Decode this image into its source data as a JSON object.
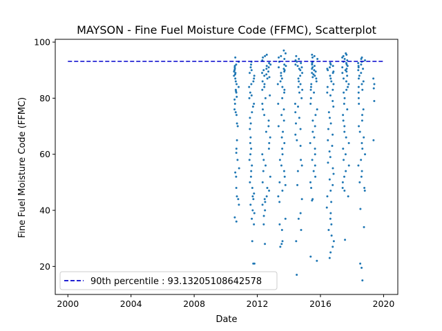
{
  "chart_data": {
    "type": "scatter",
    "title": "MAYSON - Fine Fuel Moisture Code (FFMC), Scatterplot",
    "xlabel": "Date",
    "ylabel": "Fine Fuel Moisture Code (FFMC)",
    "xlim": [
      1999.2,
      2020.9
    ],
    "ylim": [
      10,
      101
    ],
    "xticks": [
      2000,
      2004,
      2008,
      2012,
      2016,
      2020
    ],
    "yticks": [
      20,
      40,
      60,
      80,
      100
    ],
    "point_color": "#1f77b4",
    "reference_line": {
      "label": "90th percentile : 93.13205108642578",
      "value": 93.13205108642578,
      "color": "#0000cc",
      "style": "dashed"
    },
    "legend_position": "lower-left",
    "seasons": [
      {
        "year": 2010,
        "x_start": 2010.52,
        "x_end": 2010.85,
        "max": 94.5,
        "min": 36.0,
        "values": [
          94.5,
          93.0,
          92.0,
          91.5,
          91.0,
          90.5,
          90.0,
          89.5,
          89.0,
          88.5,
          88.0,
          87.0,
          86.0,
          85.0,
          84.0,
          83.0,
          82.5,
          82.0,
          80.5,
          79.5,
          78.0,
          76.0,
          75.0,
          74.0,
          71.0,
          70.0,
          65.0,
          62.0,
          60.5,
          58.0,
          55.0,
          53.5,
          52.0,
          48.0,
          45.0,
          44.0,
          42.0,
          37.5,
          36.0
        ]
      },
      {
        "year": 2011,
        "x_start": 2011.48,
        "x_end": 2011.82,
        "max": 93.0,
        "min": 21.0,
        "values": [
          93.0,
          92.0,
          91.0,
          90.0,
          89.0,
          88.0,
          87.0,
          86.0,
          85.0,
          84.0,
          82.0,
          81.0,
          80.0,
          78.0,
          77.0,
          75.0,
          73.0,
          71.0,
          69.0,
          66.0,
          64.0,
          62.0,
          60.0,
          58.0,
          56.0,
          54.0,
          52.0,
          50.0,
          48.0,
          46.0,
          45.0,
          44.0,
          42.0,
          40.0,
          39.0,
          37.0,
          35.0,
          29.0,
          21.0,
          21.0
        ]
      },
      {
        "year": 2012,
        "x_start": 2012.3,
        "x_end": 2012.85,
        "max": 95.5,
        "min": 28.0,
        "values": [
          95.5,
          95.0,
          94.5,
          93.5,
          92.5,
          92.0,
          91.5,
          91.0,
          90.5,
          90.0,
          89.5,
          89.0,
          88.5,
          88.0,
          87.5,
          87.0,
          86.0,
          85.0,
          84.0,
          83.0,
          81.0,
          80.0,
          78.0,
          76.0,
          74.0,
          72.0,
          70.0,
          68.0,
          66.0,
          64.0,
          62.0,
          60.0,
          58.0,
          56.0,
          54.0,
          52.0,
          50.0,
          48.0,
          47.0,
          45.0,
          44.0,
          43.0,
          42.0,
          40.0,
          38.0,
          35.0,
          28.0
        ]
      },
      {
        "year": 2013,
        "x_start": 2013.3,
        "x_end": 2013.82,
        "max": 97.0,
        "min": 27.0,
        "values": [
          97.0,
          96.0,
          95.0,
          94.5,
          94.0,
          93.0,
          92.0,
          91.5,
          91.0,
          90.5,
          90.0,
          89.5,
          89.0,
          88.0,
          87.0,
          86.0,
          85.0,
          84.0,
          83.0,
          82.0,
          80.0,
          78.0,
          76.0,
          74.0,
          72.0,
          70.0,
          68.0,
          66.0,
          64.0,
          62.0,
          60.0,
          58.0,
          56.0,
          54.0,
          52.0,
          50.0,
          49.0,
          47.0,
          45.0,
          43.0,
          37.0,
          35.0,
          33.0,
          29.0,
          28.0,
          27.0
        ]
      },
      {
        "year": 2014,
        "x_start": 2014.38,
        "x_end": 2014.85,
        "max": 95.0,
        "min": 17.0,
        "values": [
          95.0,
          94.0,
          93.5,
          93.0,
          92.5,
          92.0,
          91.5,
          91.0,
          90.5,
          90.0,
          89.0,
          88.0,
          87.0,
          86.0,
          85.0,
          84.0,
          83.0,
          82.0,
          80.0,
          78.0,
          77.0,
          75.0,
          73.0,
          71.0,
          69.0,
          67.0,
          65.0,
          63.0,
          58.0,
          56.0,
          54.0,
          49.0,
          44.0,
          39.0,
          37.0,
          33.0,
          29.0,
          17.0
        ]
      },
      {
        "year": 2015,
        "x_start": 2015.35,
        "x_end": 2015.82,
        "max": 95.5,
        "min": 22.0,
        "values": [
          95.5,
          95.0,
          94.5,
          94.0,
          93.0,
          92.5,
          92.0,
          91.5,
          91.0,
          90.5,
          90.0,
          89.5,
          89.0,
          88.5,
          88.0,
          87.5,
          87.0,
          86.0,
          85.0,
          84.0,
          83.0,
          82.0,
          80.0,
          78.0,
          76.0,
          74.0,
          72.0,
          70.0,
          68.0,
          66.0,
          64.0,
          62.0,
          60.0,
          58.0,
          56.0,
          54.0,
          52.0,
          50.0,
          48.0,
          44.0,
          43.5,
          23.5,
          22.0
        ]
      },
      {
        "year": 2016,
        "x_start": 2016.4,
        "x_end": 2016.85,
        "max": 92.5,
        "min": 23.0,
        "values": [
          92.5,
          92.0,
          91.5,
          91.0,
          90.5,
          90.0,
          89.5,
          89.0,
          88.0,
          87.0,
          86.0,
          85.0,
          84.0,
          83.0,
          82.0,
          81.0,
          79.0,
          77.0,
          75.0,
          73.0,
          71.0,
          69.0,
          67.0,
          65.0,
          63.0,
          61.0,
          59.0,
          57.0,
          55.0,
          53.0,
          51.0,
          49.0,
          47.0,
          45.0,
          43.0,
          41.0,
          39.0,
          37.0,
          35.0,
          33.0,
          31.0,
          29.0,
          27.0,
          25.0,
          23.0
        ]
      },
      {
        "year": 2017,
        "x_start": 2017.38,
        "x_end": 2017.85,
        "max": 96.0,
        "min": 29.5,
        "values": [
          96.0,
          95.5,
          95.0,
          94.5,
          94.0,
          93.5,
          93.0,
          92.5,
          92.0,
          91.5,
          91.0,
          90.5,
          90.0,
          89.5,
          89.0,
          88.0,
          87.0,
          86.0,
          85.0,
          84.0,
          83.0,
          82.0,
          80.0,
          78.0,
          76.0,
          74.0,
          72.0,
          70.0,
          68.0,
          66.0,
          64.0,
          62.0,
          60.0,
          58.0,
          56.0,
          54.0,
          52.0,
          50.0,
          48.0,
          47.0,
          45.0,
          29.5
        ]
      },
      {
        "year": 2018,
        "x_start": 2018.38,
        "x_end": 2018.85,
        "max": 94.5,
        "min": 15.0,
        "values": [
          94.5,
          94.0,
          93.5,
          93.0,
          92.5,
          92.0,
          91.5,
          91.0,
          90.5,
          90.0,
          89.0,
          88.0,
          87.0,
          86.0,
          85.0,
          84.0,
          83.0,
          82.0,
          80.0,
          78.0,
          76.0,
          74.0,
          72.0,
          70.0,
          68.0,
          66.0,
          64.0,
          62.0,
          60.0,
          58.0,
          56.0,
          54.0,
          52.0,
          50.0,
          48.0,
          47.0,
          40.5,
          34.0,
          21.0,
          19.5,
          15.0
        ]
      },
      {
        "year": 2019,
        "x_start": 2019.35,
        "x_end": 2019.45,
        "max": 87.0,
        "min": 65.0,
        "values": [
          87.0,
          85.0,
          83.5,
          79.0,
          65.0
        ]
      }
    ]
  }
}
